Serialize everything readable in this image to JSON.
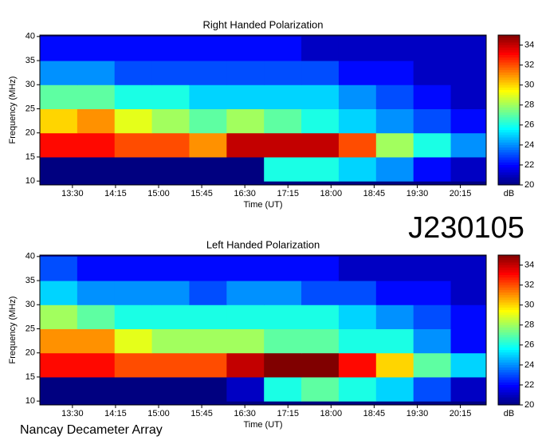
{
  "chart_data": [
    {
      "type": "heatmap",
      "title": "Right Handed Polarization",
      "xlabel": "Time (UT)",
      "ylabel": "Frequency (MHz)",
      "x_edges": [
        776,
        815,
        854,
        893,
        932,
        971,
        1010,
        1049,
        1088,
        1127,
        1166,
        1205,
        1242
      ],
      "y_edges": [
        10,
        15,
        20,
        25,
        30,
        35,
        40
      ],
      "z": [
        [
          20,
          20,
          20,
          20,
          20,
          20,
          26,
          26,
          25,
          24,
          22,
          21
        ],
        [
          33,
          33,
          32,
          32,
          31,
          34,
          34,
          34,
          32,
          28,
          26,
          24
        ],
        [
          30,
          31,
          29,
          28,
          27,
          28,
          27,
          26,
          25,
          24,
          23,
          22
        ],
        [
          27,
          27,
          26,
          26,
          25,
          25,
          25,
          25,
          24,
          23,
          22,
          21
        ],
        [
          24,
          24,
          23,
          23,
          23,
          23,
          23,
          23,
          22,
          22,
          21,
          21
        ],
        [
          22,
          22,
          22,
          22,
          22,
          22,
          22,
          21,
          21,
          21,
          21,
          21
        ]
      ],
      "xlim": [
        776,
        1242
      ],
      "ylim": [
        9.2,
        40.3
      ],
      "xticks": [
        {
          "value": 810,
          "label": "13:30"
        },
        {
          "value": 855,
          "label": "14:15"
        },
        {
          "value": 900,
          "label": "15:00"
        },
        {
          "value": 945,
          "label": "15:45"
        },
        {
          "value": 990,
          "label": "16:30"
        },
        {
          "value": 1035,
          "label": "17:15"
        },
        {
          "value": 1080,
          "label": "18:00"
        },
        {
          "value": 1125,
          "label": "18:45"
        },
        {
          "value": 1170,
          "label": "19:30"
        },
        {
          "value": 1215,
          "label": "20:15"
        }
      ],
      "yticks": [
        10,
        15,
        20,
        25,
        30,
        35,
        40
      ],
      "colormap": "jet",
      "colorbar": {
        "label": "dB",
        "lim": [
          20,
          35
        ],
        "ticks": [
          20,
          22,
          24,
          26,
          28,
          30,
          32,
          34
        ]
      }
    },
    {
      "type": "heatmap",
      "title": "Left Handed Polarization",
      "xlabel": "Time (UT)",
      "ylabel": "Frequency (MHz)",
      "x_edges": [
        776,
        815,
        854,
        893,
        932,
        971,
        1010,
        1049,
        1088,
        1127,
        1166,
        1205,
        1242
      ],
      "y_edges": [
        10,
        15,
        20,
        25,
        30,
        35,
        40
      ],
      "z": [
        [
          20,
          20,
          20,
          20,
          20,
          21,
          26,
          27,
          26,
          25,
          23,
          21
        ],
        [
          33,
          33,
          32,
          32,
          32,
          34,
          35,
          35,
          33,
          30,
          27,
          25
        ],
        [
          31,
          31,
          29,
          28,
          28,
          28,
          27,
          27,
          26,
          26,
          24,
          22
        ],
        [
          28,
          27,
          26,
          26,
          26,
          26,
          26,
          26,
          25,
          24,
          23,
          22
        ],
        [
          25,
          24,
          24,
          24,
          23,
          24,
          24,
          23,
          23,
          22,
          22,
          21
        ],
        [
          23,
          22,
          22,
          22,
          22,
          22,
          22,
          22,
          21,
          21,
          21,
          21
        ]
      ],
      "xlim": [
        776,
        1242
      ],
      "ylim": [
        9.2,
        40.3
      ],
      "xticks": [
        {
          "value": 810,
          "label": "13:30"
        },
        {
          "value": 855,
          "label": "14:15"
        },
        {
          "value": 900,
          "label": "15:00"
        },
        {
          "value": 945,
          "label": "15:45"
        },
        {
          "value": 990,
          "label": "16:30"
        },
        {
          "value": 1035,
          "label": "17:15"
        },
        {
          "value": 1080,
          "label": "18:00"
        },
        {
          "value": 1125,
          "label": "18:45"
        },
        {
          "value": 1170,
          "label": "19:30"
        },
        {
          "value": 1215,
          "label": "20:15"
        }
      ],
      "yticks": [
        10,
        15,
        20,
        25,
        30,
        35,
        40
      ],
      "colormap": "jet",
      "colorbar": {
        "label": "dB",
        "lim": [
          20,
          35
        ],
        "ticks": [
          20,
          22,
          24,
          26,
          28,
          30,
          32,
          34
        ]
      }
    }
  ],
  "page_labels": {
    "code": "J230105",
    "source": "Nancay Decameter Array"
  }
}
